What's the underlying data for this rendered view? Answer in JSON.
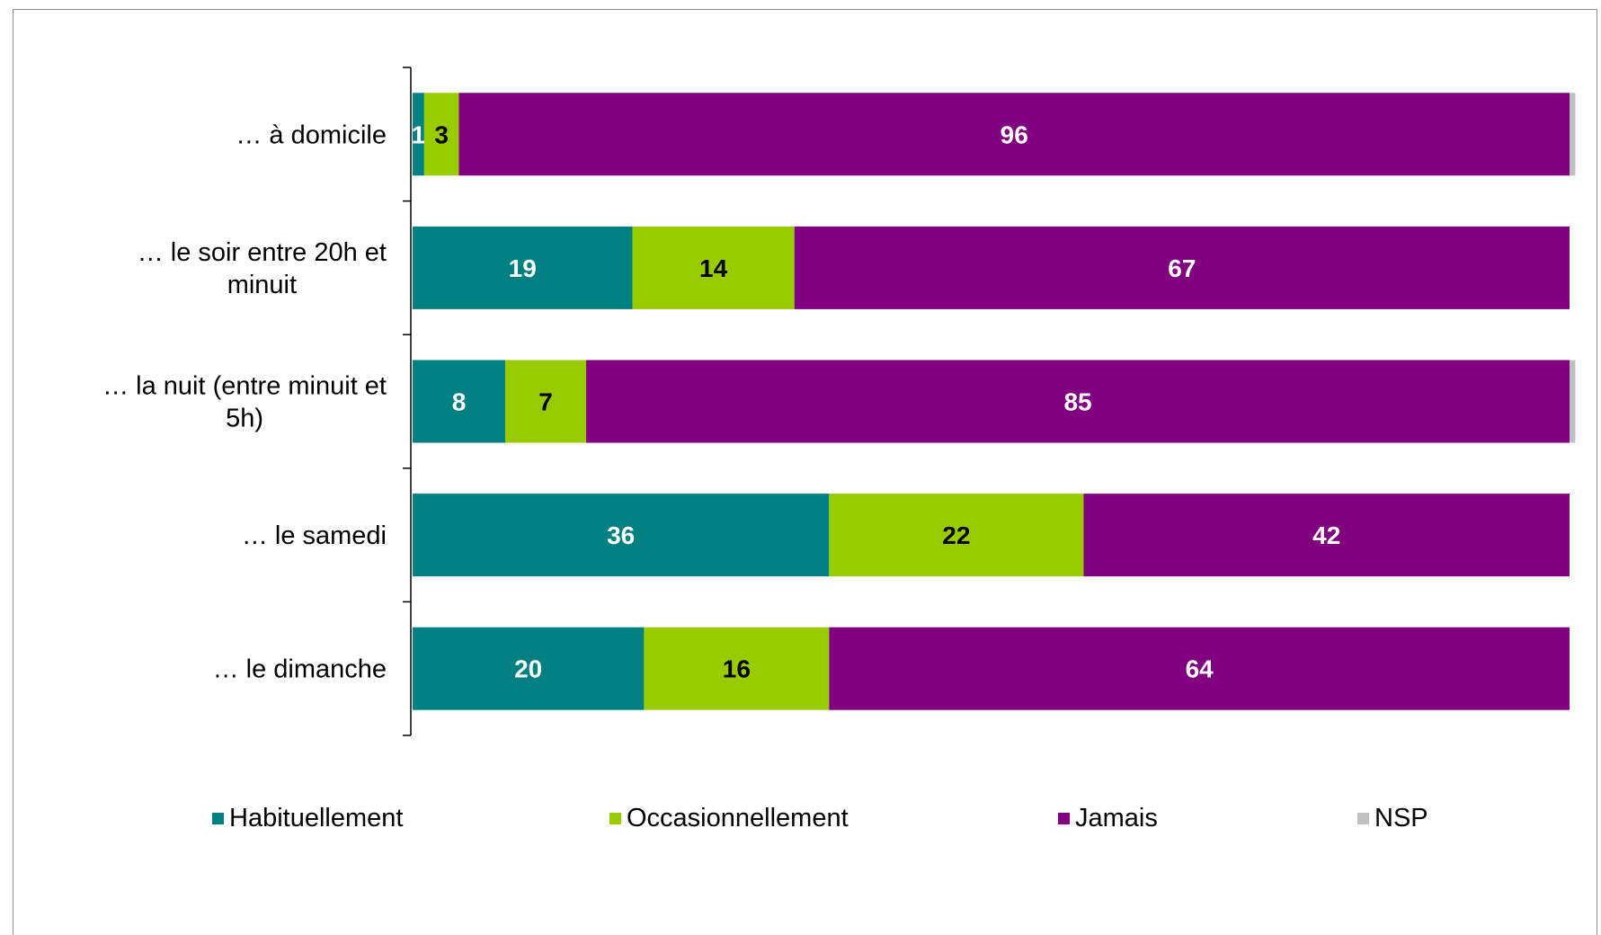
{
  "chart_data": {
    "type": "bar",
    "orientation": "horizontal",
    "stacked": true,
    "categories": [
      "… à domicile",
      "… le soir entre 20h et minuit",
      "… la nuit (entre minuit et 5h)",
      "… le samedi",
      "… le dimanche"
    ],
    "category_lines": [
      [
        "… à domicile"
      ],
      [
        "… le soir entre 20h et",
        "minuit"
      ],
      [
        "… la nuit (entre minuit et",
        "5h)"
      ],
      [
        "… le samedi"
      ],
      [
        "… le dimanche"
      ]
    ],
    "series": [
      {
        "name": "Habituellement",
        "values": [
          1,
          19,
          8,
          36,
          20
        ]
      },
      {
        "name": "Occasionnellement",
        "values": [
          3,
          14,
          7,
          22,
          16
        ]
      },
      {
        "name": "Jamais",
        "values": [
          96,
          67,
          85,
          42,
          64
        ]
      },
      {
        "name": "NSP",
        "values": [
          0.5,
          0,
          0.5,
          0,
          0
        ]
      }
    ],
    "data_labels": [
      [
        "1",
        "19",
        "8",
        "36",
        "20"
      ],
      [
        "3",
        "14",
        "7",
        "22",
        "16"
      ],
      [
        "96",
        "67",
        "85",
        "42",
        "64"
      ],
      [
        "",
        "",
        "",
        "",
        ""
      ]
    ],
    "colors": [
      "#008080",
      "#99CC00",
      "#800080",
      "#C0C0C0"
    ],
    "label_colors": [
      "#ffffff",
      "#000000",
      "#ffffff",
      "#000000"
    ],
    "xlim": [
      0,
      100
    ],
    "grid": false,
    "legend_position": "bottom"
  }
}
